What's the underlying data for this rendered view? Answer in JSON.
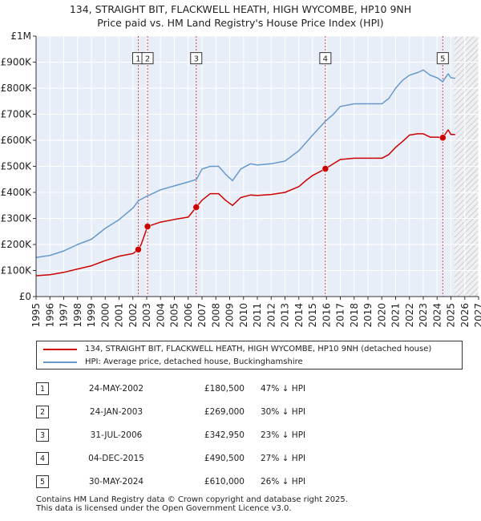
{
  "title_line1": "134, STRAIGHT BIT, FLACKWELL HEATH, HIGH WYCOMBE, HP10 9NH",
  "title_line2": "Price paid vs. HM Land Registry's House Price Index (HPI)",
  "legend": {
    "property": "134, STRAIGHT BIT, FLACKWELL HEATH, HIGH WYCOMBE, HP10 9NH (detached house)",
    "hpi": "HPI: Average price, detached house, Buckinghamshire"
  },
  "colors": {
    "property": "#cc0000",
    "hpi": "#6699cc",
    "plot_bg": "#e8eef7",
    "grid": "#ffffff",
    "future": "#d0d0d0"
  },
  "sales": [
    {
      "num": "1",
      "date": "24-MAY-2002",
      "price": "£180,500",
      "hpi": "47% ↓ HPI"
    },
    {
      "num": "2",
      "date": "24-JAN-2003",
      "price": "£269,000",
      "hpi": "30% ↓ HPI"
    },
    {
      "num": "3",
      "date": "31-JUL-2006",
      "price": "£342,950",
      "hpi": "23% ↓ HPI"
    },
    {
      "num": "4",
      "date": "04-DEC-2015",
      "price": "£490,500",
      "hpi": "27% ↓ HPI"
    },
    {
      "num": "5",
      "date": "30-MAY-2024",
      "price": "£610,000",
      "hpi": "26% ↓ HPI"
    }
  ],
  "footer_line1": "Contains HM Land Registry data © Crown copyright and database right 2025.",
  "footer_line2": "This data is licensed under the Open Government Licence v3.0.",
  "chart_data": {
    "type": "line",
    "xlim": [
      1995,
      2027
    ],
    "ylim": [
      0,
      1000000
    ],
    "x_ticks": [
      1995,
      1996,
      1997,
      1998,
      1999,
      2000,
      2001,
      2002,
      2003,
      2004,
      2005,
      2006,
      2007,
      2008,
      2009,
      2010,
      2011,
      2012,
      2013,
      2014,
      2015,
      2016,
      2017,
      2018,
      2019,
      2020,
      2021,
      2022,
      2023,
      2024,
      2025,
      2026,
      2027
    ],
    "y_ticks": [
      0,
      100000,
      200000,
      300000,
      400000,
      500000,
      600000,
      700000,
      800000,
      900000,
      1000000
    ],
    "y_tick_labels": [
      "£0",
      "£100K",
      "£200K",
      "£300K",
      "£400K",
      "£500K",
      "£600K",
      "£700K",
      "£800K",
      "£900K",
      "£1M"
    ],
    "hatch_from": 2025.25,
    "series": [
      {
        "name": "HPI: Average price, detached house, Buckinghamshire",
        "key": "hpi",
        "x": [
          1995.0,
          1996.0,
          1997.0,
          1998.0,
          1999.0,
          2000.0,
          2001.0,
          2002.0,
          2002.4,
          2003.0,
          2004.0,
          2005.0,
          2006.0,
          2006.6,
          2007.0,
          2007.6,
          2008.2,
          2008.7,
          2009.2,
          2009.8,
          2010.5,
          2011.0,
          2012.0,
          2013.0,
          2014.0,
          2014.5,
          2015.0,
          2015.9,
          2016.5,
          2017.0,
          2018.0,
          2019.0,
          2020.0,
          2020.5,
          2021.0,
          2021.5,
          2022.0,
          2022.6,
          2023.0,
          2023.5,
          2024.0,
          2024.4,
          2024.8,
          2025.0,
          2025.3
        ],
        "values": [
          150000,
          158000,
          175000,
          200000,
          220000,
          262000,
          295000,
          340000,
          368000,
          385000,
          410000,
          425000,
          440000,
          450000,
          490000,
          500000,
          500000,
          470000,
          445000,
          490000,
          510000,
          505000,
          510000,
          520000,
          560000,
          590000,
          620000,
          672000,
          700000,
          730000,
          740000,
          740000,
          740000,
          760000,
          800000,
          830000,
          850000,
          860000,
          870000,
          850000,
          840000,
          825000,
          855000,
          840000,
          838000
        ]
      },
      {
        "name": "134, STRAIGHT BIT, FLACKWELL HEATH, HIGH WYCOMBE, HP10 9NH (detached house)",
        "key": "property",
        "x": [
          1995.0,
          1996.0,
          1997.0,
          1998.0,
          1999.0,
          2000.0,
          2001.0,
          2002.0,
          2002.39,
          2002.6,
          2003.06,
          2004.0,
          2005.0,
          2006.0,
          2006.58,
          2007.0,
          2007.6,
          2008.2,
          2008.7,
          2009.2,
          2009.8,
          2010.5,
          2011.0,
          2012.0,
          2013.0,
          2014.0,
          2014.5,
          2015.0,
          2015.92,
          2016.5,
          2017.0,
          2018.0,
          2019.0,
          2020.0,
          2020.5,
          2021.0,
          2021.5,
          2022.0,
          2022.6,
          2023.0,
          2023.5,
          2024.0,
          2024.41,
          2024.8,
          2025.0,
          2025.3
        ],
        "values": [
          80000,
          84000,
          93000,
          106000,
          118000,
          138000,
          155000,
          165000,
          180500,
          200000,
          269000,
          286000,
          296000,
          305000,
          342950,
          370000,
          395000,
          395000,
          370000,
          350000,
          380000,
          390000,
          388000,
          392000,
          400000,
          422000,
          445000,
          465000,
          490500,
          510000,
          526000,
          531000,
          531000,
          531000,
          545000,
          573000,
          595000,
          620000,
          625000,
          625000,
          612000,
          612000,
          610000,
          640000,
          622000,
          622000
        ]
      }
    ],
    "sale_markers": [
      {
        "label": "1",
        "x": 2002.39,
        "value": 180500
      },
      {
        "label": "2",
        "x": 2003.06,
        "value": 269000
      },
      {
        "label": "3",
        "x": 2006.58,
        "value": 342950
      },
      {
        "label": "4",
        "x": 2015.92,
        "value": 490500
      },
      {
        "label": "5",
        "x": 2024.41,
        "value": 610000
      }
    ],
    "marker_label_value": 915000
  }
}
